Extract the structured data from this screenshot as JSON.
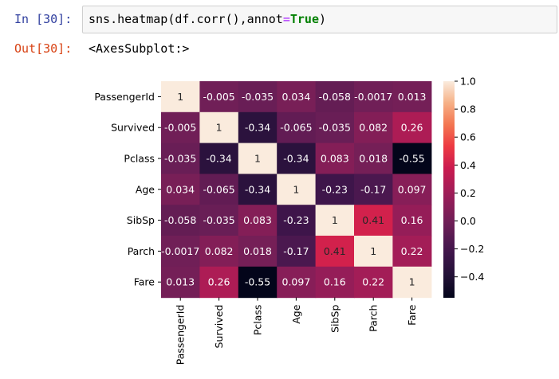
{
  "input_prompt": "In [30]:",
  "output_prompt": "Out[30]:",
  "code": {
    "part1": "sns.heatmap(df.corr(),annot",
    "op": "=",
    "kw": "True",
    "part2": ")"
  },
  "output_text": "<AxesSubplot:>",
  "chart_data": {
    "type": "heatmap",
    "title": "",
    "rows": [
      "PassengerId",
      "Survived",
      "Pclass",
      "Age",
      "SibSp",
      "Parch",
      "Fare"
    ],
    "columns": [
      "PassengerId",
      "Survived",
      "Pclass",
      "Age",
      "SibSp",
      "Parch",
      "Fare"
    ],
    "values": [
      [
        1,
        -0.005,
        -0.035,
        0.034,
        -0.058,
        -0.0017,
        0.013
      ],
      [
        -0.005,
        1,
        -0.34,
        -0.065,
        -0.035,
        0.082,
        0.26
      ],
      [
        -0.035,
        -0.34,
        1,
        -0.34,
        0.083,
        0.018,
        -0.55
      ],
      [
        0.034,
        -0.065,
        -0.34,
        1,
        -0.23,
        -0.17,
        0.097
      ],
      [
        -0.058,
        -0.035,
        0.083,
        -0.23,
        1,
        0.41,
        0.16
      ],
      [
        -0.0017,
        0.082,
        0.018,
        -0.17,
        0.41,
        1,
        0.22
      ],
      [
        0.013,
        0.26,
        -0.55,
        0.097,
        0.16,
        0.22,
        1
      ]
    ],
    "value_labels": [
      [
        "1",
        "-0.005",
        "-0.035",
        "0.034",
        "-0.058",
        "-0.0017",
        "0.013"
      ],
      [
        "-0.005",
        "1",
        "-0.34",
        "-0.065",
        "-0.035",
        "0.082",
        "0.26"
      ],
      [
        "-0.035",
        "-0.34",
        "1",
        "-0.34",
        "0.083",
        "0.018",
        "-0.55"
      ],
      [
        "0.034",
        "-0.065",
        "-0.34",
        "1",
        "-0.23",
        "-0.17",
        "0.097"
      ],
      [
        "-0.058",
        "-0.035",
        "0.083",
        "-0.23",
        "1",
        "0.41",
        "0.16"
      ],
      [
        "-0.0017",
        "0.082",
        "0.018",
        "-0.17",
        "0.41",
        "1",
        "0.22"
      ],
      [
        "0.013",
        "0.26",
        "-0.55",
        "0.097",
        "0.16",
        "0.22",
        "1"
      ]
    ],
    "colorbar": {
      "range": [
        -0.55,
        1.0
      ],
      "ticks": [
        1.0,
        0.8,
        0.6,
        0.4,
        0.2,
        0.0,
        -0.2,
        -0.4
      ],
      "tick_labels": [
        "1.0",
        "0.8",
        "0.6",
        "0.4",
        "0.2",
        "0.0",
        "−0.2",
        "−0.4"
      ],
      "colormap": "rocket"
    }
  }
}
